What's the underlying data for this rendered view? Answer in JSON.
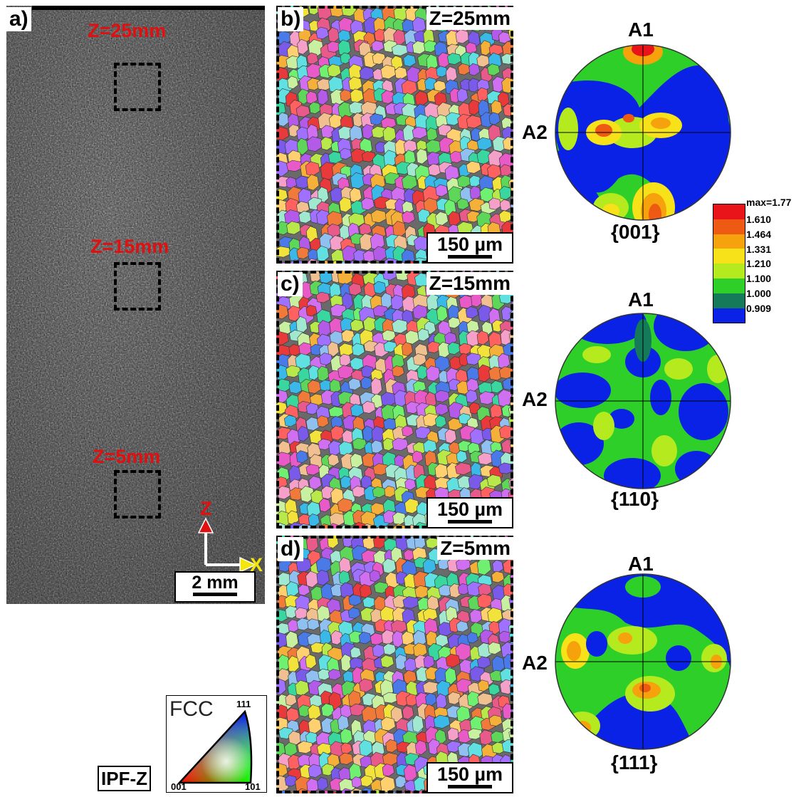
{
  "panel_a": {
    "tag": "a)",
    "regions": [
      {
        "label": "Z=25mm"
      },
      {
        "label": "Z=15mm"
      },
      {
        "label": "Z=5mm"
      }
    ],
    "axis_z": "Z",
    "axis_x": "X",
    "scale": "2 mm"
  },
  "ebsd_maps": [
    {
      "tag": "b)",
      "z": "Z=25mm",
      "scale": "150 µm"
    },
    {
      "tag": "c)",
      "z": "Z=15mm",
      "scale": "150 µm"
    },
    {
      "tag": "d)",
      "z": "Z=5mm",
      "scale": "150 µm"
    }
  ],
  "pole_figures": [
    {
      "plane": "{001}",
      "a1": "A1",
      "a2": "A2"
    },
    {
      "plane": "{110}",
      "a1": "A1",
      "a2": "A2"
    },
    {
      "plane": "{111}",
      "a1": "A1",
      "a2": "A2"
    }
  ],
  "colorbar": {
    "max_label": "max=1.77",
    "levels": [
      "1.610",
      "1.464",
      "1.331",
      "1.210",
      "1.100",
      "1.000",
      "0.909"
    ],
    "colors": [
      "#e8141a",
      "#ee5a14",
      "#f5a20c",
      "#f7e21a",
      "#b5ea1e",
      "#2fcf2a",
      "#157a5a",
      "#0a22e6"
    ]
  },
  "ipf_legend": {
    "title": "FCC",
    "corner_111": "111",
    "corner_001": "001",
    "corner_101": "101",
    "label": "IPF-Z"
  }
}
